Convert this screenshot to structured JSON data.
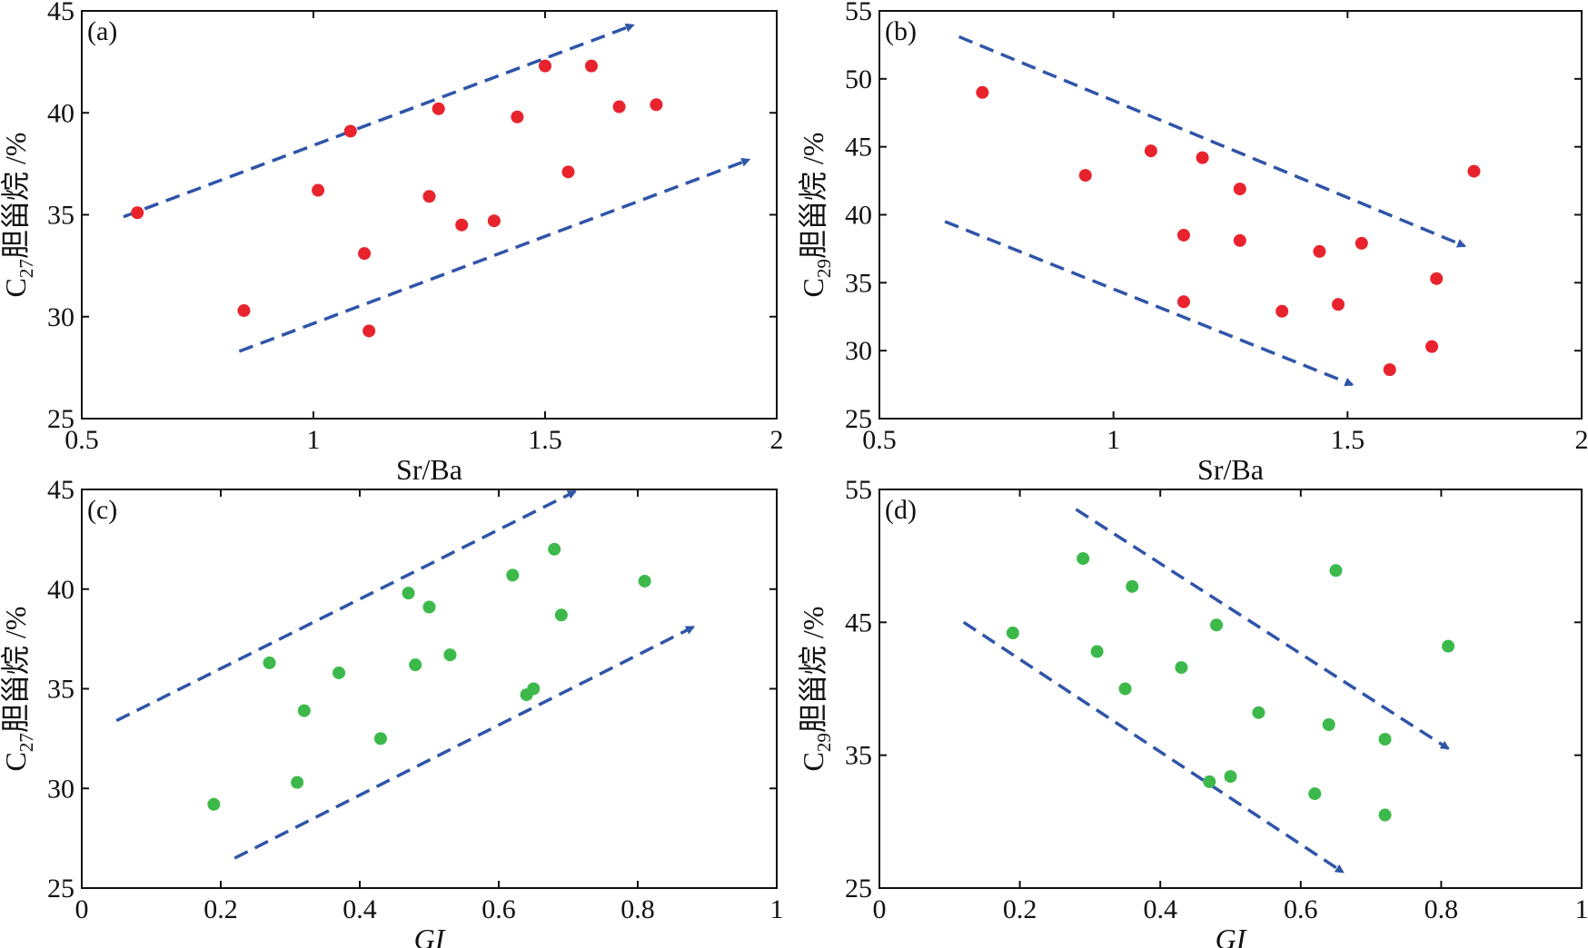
{
  "colors": {
    "trend_arrow": "#2f55a8",
    "red_points": "#e8232d",
    "green_points": "#3cb94a",
    "axis": "#111111"
  },
  "chart_data": [
    {
      "panel": "(a)",
      "type": "scatter",
      "xlabel": "Sr/Ba",
      "xlabel_italic": false,
      "ylabel": {
        "prefix": "C",
        "sub": "27",
        "text": "胆甾烷 /%"
      },
      "xlim": [
        0.5,
        2
      ],
      "ylim": [
        25,
        45
      ],
      "xticks": [
        0.5,
        1,
        1.5,
        2
      ],
      "xtick_labels": [
        "0.5",
        "1",
        "1.5",
        "2"
      ],
      "yticks": [
        25,
        30,
        35,
        40,
        45
      ],
      "ytick_labels": [
        "25",
        "30",
        "35",
        "40",
        "45"
      ],
      "grid": false,
      "point_color": "#e8232d",
      "points": [
        {
          "x": 0.62,
          "y": 35.1
        },
        {
          "x": 0.85,
          "y": 30.3
        },
        {
          "x": 1.01,
          "y": 36.2
        },
        {
          "x": 1.08,
          "y": 39.1
        },
        {
          "x": 1.11,
          "y": 33.1
        },
        {
          "x": 1.12,
          "y": 29.3
        },
        {
          "x": 1.25,
          "y": 35.9
        },
        {
          "x": 1.27,
          "y": 40.2
        },
        {
          "x": 1.32,
          "y": 34.5
        },
        {
          "x": 1.39,
          "y": 34.7
        },
        {
          "x": 1.44,
          "y": 39.8
        },
        {
          "x": 1.5,
          "y": 42.3
        },
        {
          "x": 1.55,
          "y": 37.1
        },
        {
          "x": 1.6,
          "y": 42.3
        },
        {
          "x": 1.66,
          "y": 40.3
        },
        {
          "x": 1.74,
          "y": 40.4
        }
      ],
      "trend_arrows": [
        {
          "from": [
            0.59,
            34.9
          ],
          "to": [
            1.69,
            44.3
          ]
        },
        {
          "from": [
            0.84,
            28.3
          ],
          "to": [
            1.94,
            37.7
          ]
        }
      ]
    },
    {
      "panel": "(b)",
      "type": "scatter",
      "xlabel": "Sr/Ba",
      "xlabel_italic": false,
      "ylabel": {
        "prefix": "C",
        "sub": "29",
        "text": "胆甾烷 /%"
      },
      "xlim": [
        0.5,
        2
      ],
      "ylim": [
        25,
        55
      ],
      "xticks": [
        0.5,
        1,
        1.5,
        2
      ],
      "xtick_labels": [
        "0.5",
        "1",
        "1.5",
        "2"
      ],
      "yticks": [
        25,
        30,
        35,
        40,
        45,
        50,
        55
      ],
      "ytick_labels": [
        "25",
        "30",
        "35",
        "40",
        "45",
        "50",
        "55"
      ],
      "grid": false,
      "point_color": "#e8232d",
      "points": [
        {
          "x": 0.72,
          "y": 49.0
        },
        {
          "x": 0.94,
          "y": 42.9
        },
        {
          "x": 1.08,
          "y": 44.7
        },
        {
          "x": 1.19,
          "y": 44.2
        },
        {
          "x": 1.27,
          "y": 41.9
        },
        {
          "x": 1.15,
          "y": 38.5
        },
        {
          "x": 1.27,
          "y": 38.1
        },
        {
          "x": 1.44,
          "y": 37.3
        },
        {
          "x": 1.53,
          "y": 37.9
        },
        {
          "x": 1.15,
          "y": 33.6
        },
        {
          "x": 1.36,
          "y": 32.9
        },
        {
          "x": 1.48,
          "y": 33.4
        },
        {
          "x": 1.69,
          "y": 35.3
        },
        {
          "x": 1.59,
          "y": 28.6
        },
        {
          "x": 1.68,
          "y": 30.3
        },
        {
          "x": 1.77,
          "y": 43.2
        }
      ],
      "trend_arrows": [
        {
          "from": [
            0.67,
            53.1
          ],
          "to": [
            1.75,
            37.7
          ]
        },
        {
          "from": [
            0.64,
            39.5
          ],
          "to": [
            1.51,
            27.5
          ]
        }
      ]
    },
    {
      "panel": "(c)",
      "type": "scatter",
      "xlabel": "GI",
      "xlabel_italic": true,
      "ylabel": {
        "prefix": "C",
        "sub": "27",
        "text": "胆甾烷 /%"
      },
      "xlim": [
        0,
        1
      ],
      "ylim": [
        25,
        45
      ],
      "xticks": [
        0,
        0.2,
        0.4,
        0.6,
        0.8,
        1
      ],
      "xtick_labels": [
        "0",
        "0.2",
        "0.4",
        "0.6",
        "0.8",
        "1"
      ],
      "yticks": [
        25,
        30,
        35,
        40,
        45
      ],
      "ytick_labels": [
        "25",
        "30",
        "35",
        "40",
        "45"
      ],
      "grid": false,
      "point_color": "#3cb94a",
      "points": [
        {
          "x": 0.19,
          "y": 29.2
        },
        {
          "x": 0.27,
          "y": 36.3
        },
        {
          "x": 0.31,
          "y": 30.3
        },
        {
          "x": 0.32,
          "y": 33.9
        },
        {
          "x": 0.37,
          "y": 35.8
        },
        {
          "x": 0.43,
          "y": 32.5
        },
        {
          "x": 0.47,
          "y": 39.8
        },
        {
          "x": 0.48,
          "y": 36.2
        },
        {
          "x": 0.5,
          "y": 39.1
        },
        {
          "x": 0.53,
          "y": 36.7
        },
        {
          "x": 0.62,
          "y": 40.7
        },
        {
          "x": 0.64,
          "y": 34.7
        },
        {
          "x": 0.65,
          "y": 35.0
        },
        {
          "x": 0.68,
          "y": 42.0
        },
        {
          "x": 0.69,
          "y": 38.7
        },
        {
          "x": 0.81,
          "y": 40.4
        }
      ],
      "trend_arrows": [
        {
          "from": [
            0.05,
            33.4
          ],
          "to": [
            0.71,
            44.9
          ]
        },
        {
          "from": [
            0.22,
            26.5
          ],
          "to": [
            0.88,
            38.1
          ]
        }
      ]
    },
    {
      "panel": "(d)",
      "type": "scatter",
      "xlabel": "GI",
      "xlabel_italic": true,
      "ylabel": {
        "prefix": "C",
        "sub": "29",
        "text": "胆甾烷 /%"
      },
      "xlim": [
        0,
        1
      ],
      "ylim": [
        25,
        55
      ],
      "xticks": [
        0,
        0.2,
        0.4,
        0.6,
        0.8,
        1
      ],
      "xtick_labels": [
        "0",
        "0.2",
        "0.4",
        "0.6",
        "0.8",
        "1"
      ],
      "yticks": [
        25,
        35,
        45,
        55
      ],
      "ytick_labels": [
        "25",
        "35",
        "45",
        "55"
      ],
      "grid": false,
      "point_color": "#3cb94a",
      "points": [
        {
          "x": 0.19,
          "y": 44.2
        },
        {
          "x": 0.29,
          "y": 49.8
        },
        {
          "x": 0.31,
          "y": 42.8
        },
        {
          "x": 0.35,
          "y": 40.0
        },
        {
          "x": 0.36,
          "y": 47.7
        },
        {
          "x": 0.43,
          "y": 41.6
        },
        {
          "x": 0.48,
          "y": 44.8
        },
        {
          "x": 0.47,
          "y": 33.0
        },
        {
          "x": 0.5,
          "y": 33.4
        },
        {
          "x": 0.54,
          "y": 38.2
        },
        {
          "x": 0.62,
          "y": 32.1
        },
        {
          "x": 0.64,
          "y": 37.3
        },
        {
          "x": 0.65,
          "y": 48.9
        },
        {
          "x": 0.72,
          "y": 36.2
        },
        {
          "x": 0.72,
          "y": 30.5
        },
        {
          "x": 0.81,
          "y": 43.2
        }
      ],
      "trend_arrows": [
        {
          "from": [
            0.28,
            53.5
          ],
          "to": [
            0.81,
            35.5
          ]
        },
        {
          "from": [
            0.12,
            45.0
          ],
          "to": [
            0.66,
            26.2
          ]
        }
      ]
    }
  ]
}
